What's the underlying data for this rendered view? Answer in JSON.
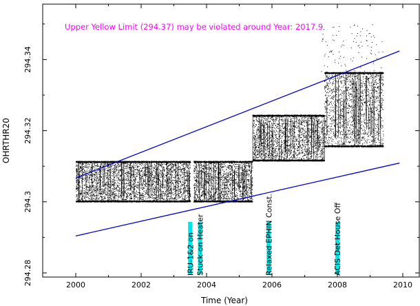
{
  "chart_data": {
    "type": "scatter",
    "title": "Upper Yellow  Limit (294.37) may be violated around Year: 2017.9",
    "xlabel": "Time (Year)",
    "ylabel": "OHRTHR20",
    "xlim": [
      1999,
      2010.5
    ],
    "ylim": [
      294.28,
      294.355
    ],
    "x_ticks": [
      2000,
      2002,
      2004,
      2006,
      2008,
      2010
    ],
    "x_tick_labels": [
      "2000",
      "2002",
      "2004",
      "2006",
      "2008",
      "2010"
    ],
    "y_ticks": [
      294.28,
      294.3,
      294.32,
      294.34
    ],
    "y_tick_labels": [
      "294.28",
      "294.3",
      "294.32",
      "294.34"
    ],
    "grid": false,
    "colors": {
      "title": "#ff00ff",
      "points": "#000000",
      "trend_lines": "#0000cc",
      "event_markers": "#00e5e5",
      "frame": "#000000"
    },
    "trend_lines": [
      {
        "x": [
          2000,
          2009.9
        ],
        "y": [
          294.3067,
          294.3424
        ]
      },
      {
        "x": [
          2000,
          2009.9
        ],
        "y": [
          294.2904,
          294.3109
        ]
      }
    ],
    "bands": [
      {
        "x": [
          2000,
          2003.5
        ],
        "low": 294.3,
        "high": 294.3115
      },
      {
        "x": [
          2003.6,
          2005.4
        ],
        "low": 294.3,
        "high": 294.3115
      },
      {
        "x": [
          2005.4,
          2007.6
        ],
        "low": 294.3115,
        "high": 294.3245
      },
      {
        "x": [
          2007.6,
          2009.4
        ],
        "low": 294.3155,
        "high": 294.3365
      }
    ],
    "events": [
      {
        "x": 2003.5,
        "label": "IRU-1&2 on"
      },
      {
        "x": 2003.8,
        "label": "Stuck-on Heater"
      },
      {
        "x": 2005.9,
        "label": "Relaxed EPHIN Const."
      },
      {
        "x": 2008.0,
        "label": "ACIS Det House Off"
      }
    ]
  }
}
